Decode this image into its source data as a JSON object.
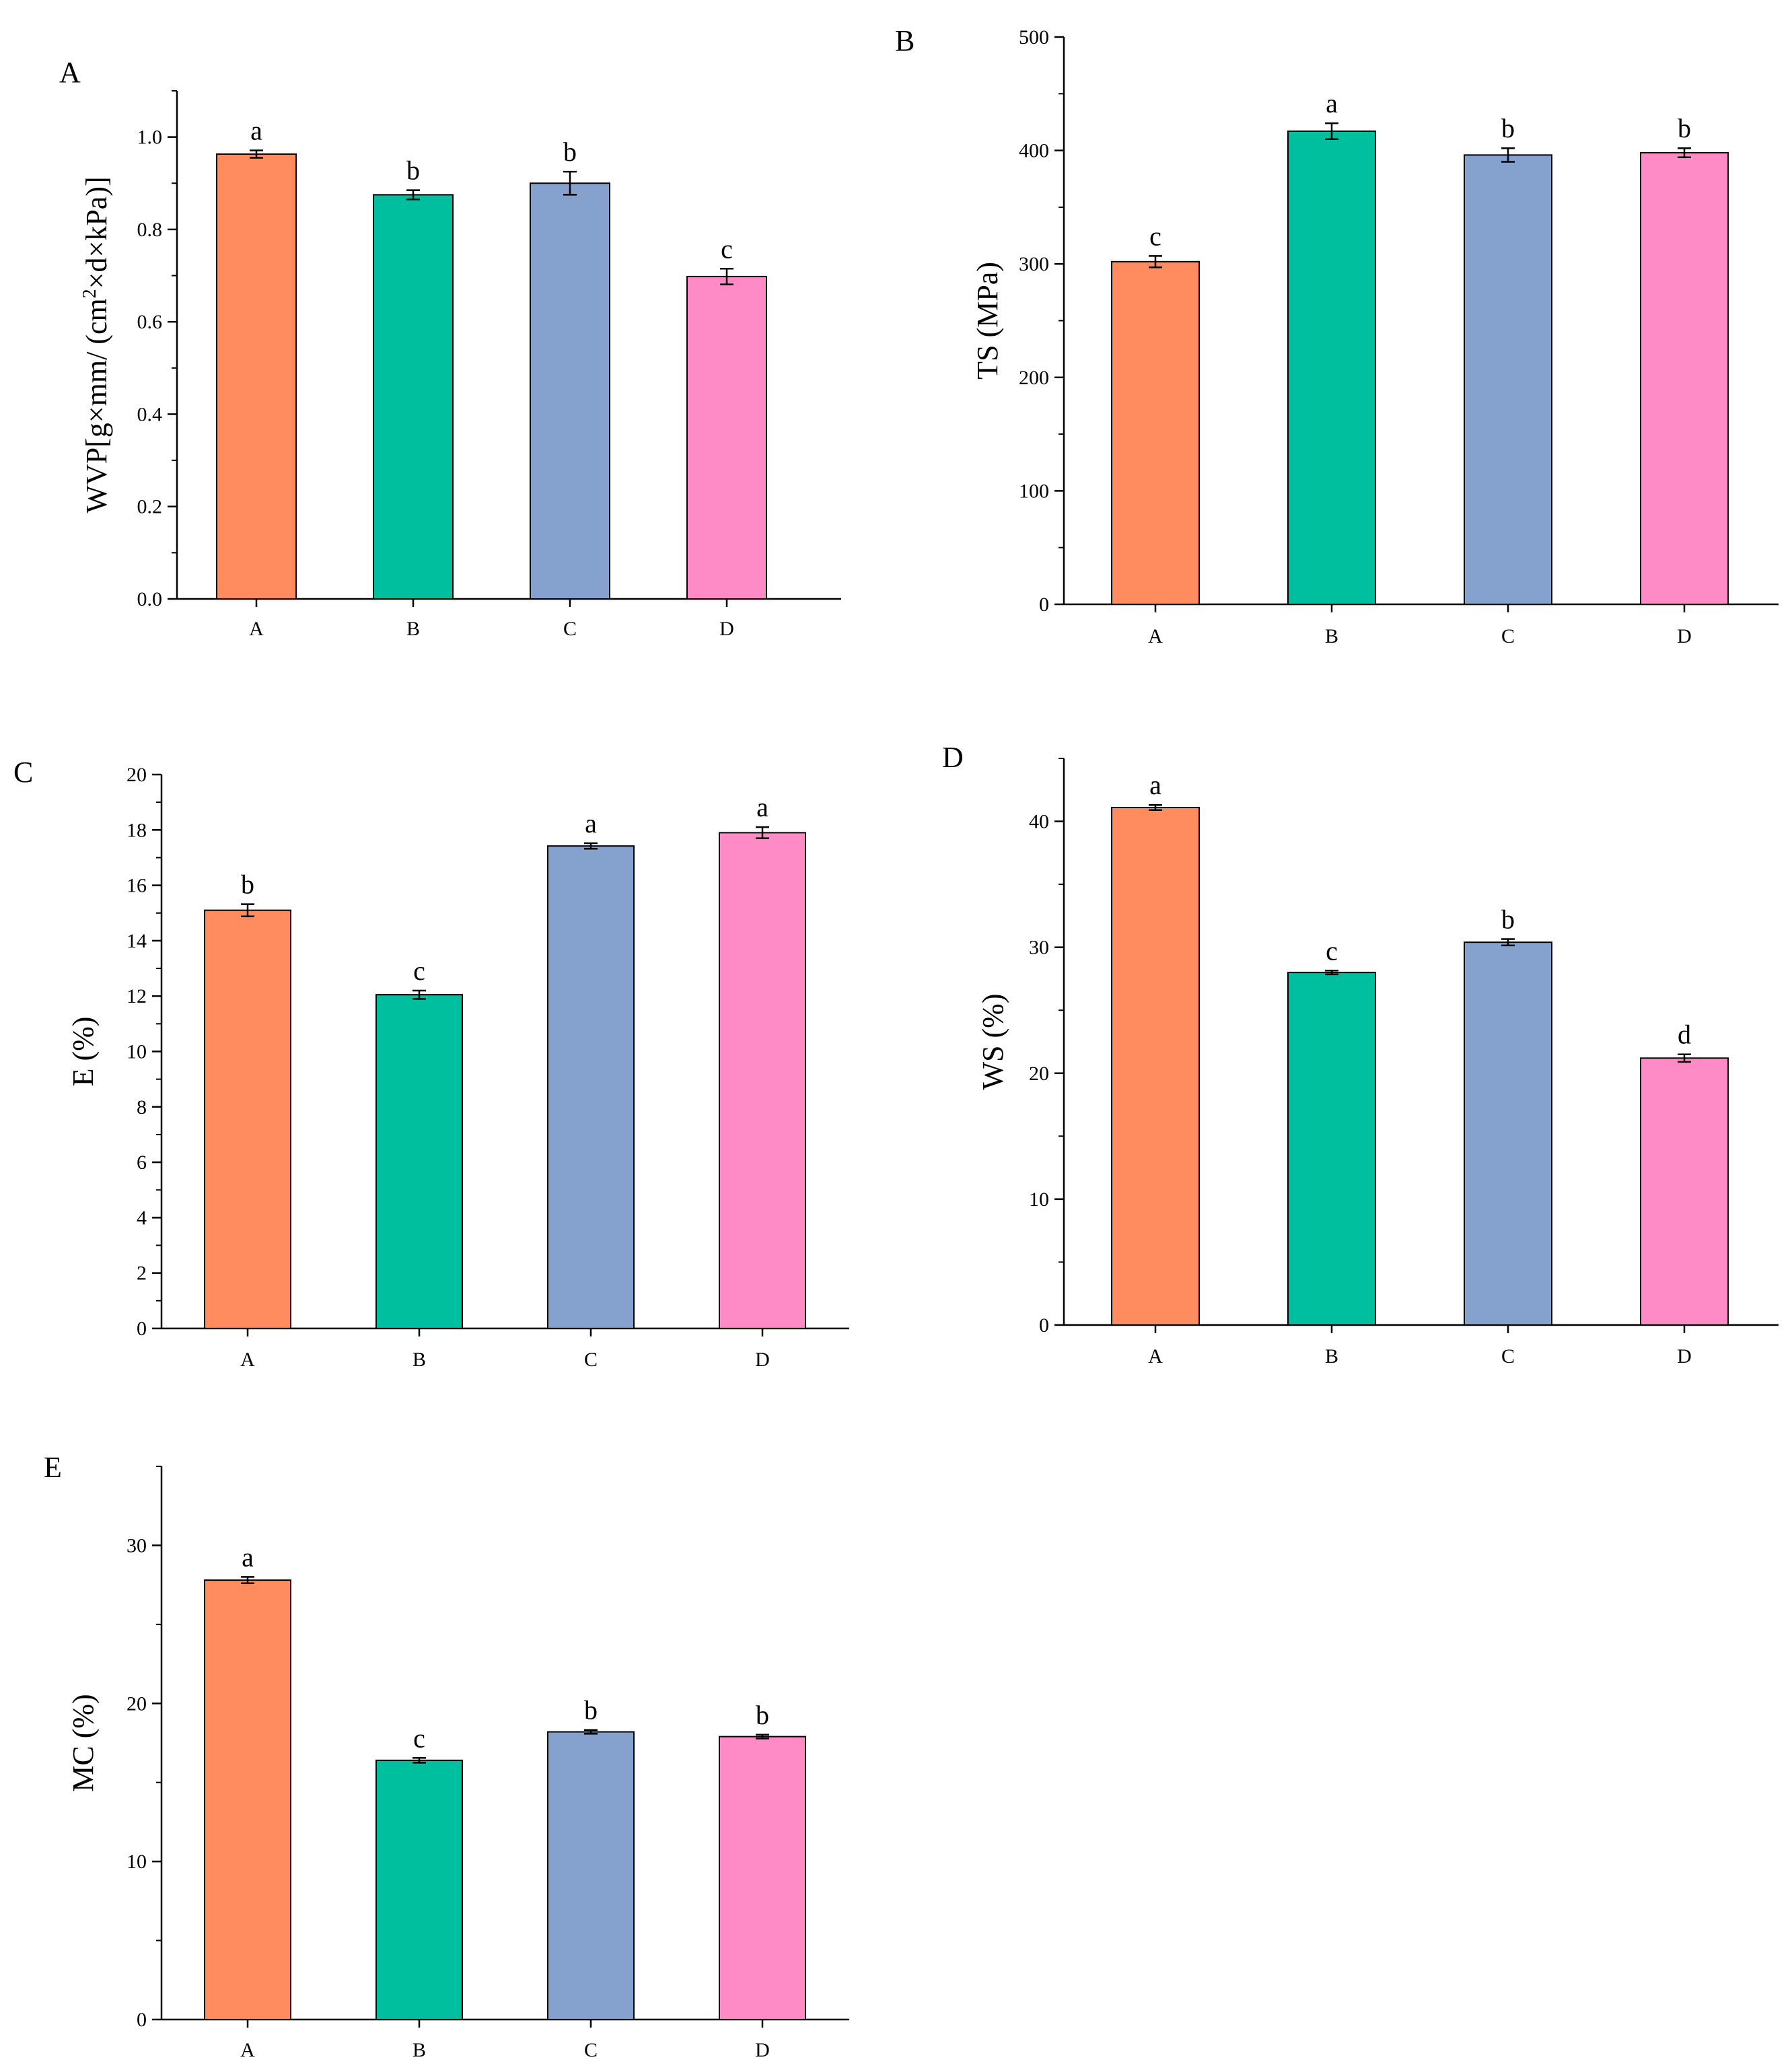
{
  "chart_data": [
    {
      "panel": "A",
      "type": "bar",
      "ylabel_parts": [
        "WVP[g×mm/ (cm",
        "2",
        "×d×kPa)]"
      ],
      "categories": [
        "A",
        "B",
        "C",
        "D"
      ],
      "values": [
        0.963,
        0.875,
        0.9,
        0.698
      ],
      "errors": [
        0.008,
        0.01,
        0.025,
        0.017
      ],
      "significance": [
        "a",
        "b",
        "b",
        "c"
      ],
      "ylim": [
        0,
        1.1
      ],
      "yticks": [
        0.0,
        0.2,
        0.4,
        0.6,
        0.8,
        1.0
      ],
      "ytick_labels": [
        "0.0",
        "0.2",
        "0.4",
        "0.6",
        "0.8",
        "1.0"
      ],
      "colors": [
        "#FF8C5F",
        "#00BF9F",
        "#85A2CE",
        "#FF8BC6"
      ]
    },
    {
      "panel": "B",
      "type": "bar",
      "ylabel": "TS (MPa)",
      "categories": [
        "A",
        "B",
        "C",
        "D"
      ],
      "values": [
        302,
        417,
        396,
        398
      ],
      "errors": [
        5,
        7,
        6,
        4
      ],
      "significance": [
        "c",
        "a",
        "b",
        "b"
      ],
      "ylim": [
        0,
        500
      ],
      "yticks": [
        0,
        100,
        200,
        300,
        400,
        500
      ],
      "ytick_labels": [
        "0",
        "100",
        "200",
        "300",
        "400",
        "500"
      ],
      "colors": [
        "#FF8C5F",
        "#00BF9F",
        "#85A2CE",
        "#FF8BC6"
      ]
    },
    {
      "panel": "C",
      "type": "bar",
      "ylabel": "E (%)",
      "categories": [
        "A",
        "B",
        "C",
        "D"
      ],
      "values": [
        15.1,
        12.05,
        17.42,
        17.9
      ],
      "errors": [
        0.22,
        0.15,
        0.1,
        0.2
      ],
      "significance": [
        "b",
        "c",
        "a",
        "a"
      ],
      "ylim": [
        0,
        20
      ],
      "yticks": [
        0,
        2,
        4,
        6,
        8,
        10,
        12,
        14,
        16,
        18,
        20
      ],
      "ytick_labels": [
        "0",
        "2",
        "4",
        "6",
        "8",
        "10",
        "12",
        "14",
        "16",
        "18",
        "20"
      ],
      "colors": [
        "#FF8C5F",
        "#00BF9F",
        "#85A2CE",
        "#FF8BC6"
      ]
    },
    {
      "panel": "D",
      "type": "bar",
      "ylabel": "WS (%)",
      "categories": [
        "A",
        "B",
        "C",
        "D"
      ],
      "values": [
        41.1,
        28.0,
        30.4,
        21.2
      ],
      "errors": [
        0.2,
        0.15,
        0.25,
        0.3
      ],
      "significance": [
        "a",
        "c",
        "b",
        "d"
      ],
      "ylim": [
        0,
        45
      ],
      "yticks": [
        0,
        10,
        20,
        30,
        40
      ],
      "ytick_labels": [
        "0",
        "10",
        "20",
        "30",
        "40"
      ],
      "colors": [
        "#FF8C5F",
        "#00BF9F",
        "#85A2CE",
        "#FF8BC6"
      ]
    },
    {
      "panel": "E",
      "type": "bar",
      "ylabel": "MC (%)",
      "categories": [
        "A",
        "B",
        "C",
        "D"
      ],
      "values": [
        27.8,
        16.4,
        18.2,
        17.9
      ],
      "errors": [
        0.2,
        0.15,
        0.12,
        0.12
      ],
      "significance": [
        "a",
        "c",
        "b",
        "b"
      ],
      "ylim": [
        0,
        35
      ],
      "yticks": [
        0,
        10,
        20,
        30
      ],
      "ytick_labels": [
        "0",
        "10",
        "20",
        "30"
      ],
      "colors": [
        "#FF8C5F",
        "#00BF9F",
        "#85A2CE",
        "#FF8BC6"
      ]
    }
  ]
}
